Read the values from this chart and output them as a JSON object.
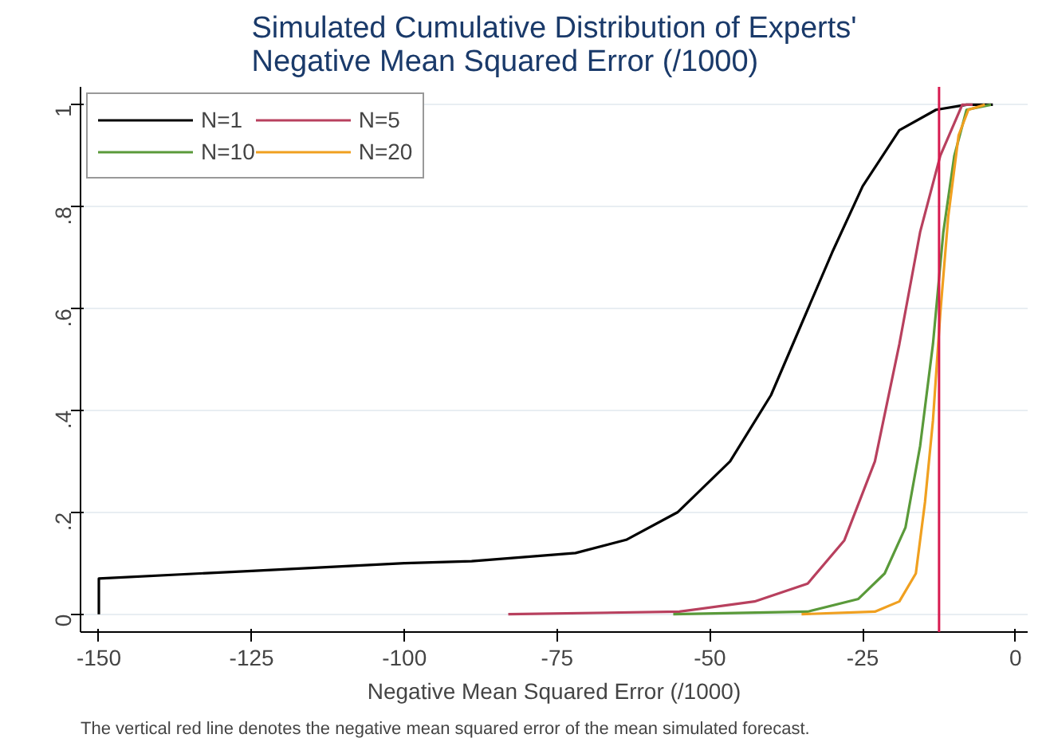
{
  "chart_data": {
    "type": "line",
    "title": "Simulated Cumulative Distribution of Experts'\nNegative Mean Squared Error (/1000)",
    "xlabel": "Negative Mean Squared Error (/1000)",
    "annotations": [
      "The vertical red line denotes the negative mean squared error of the mean simulated forecast."
    ],
    "xlim": [
      -153,
      2
    ],
    "ylim": [
      -0.035,
      1.035
    ],
    "xticks": [
      -150,
      -125,
      -100,
      -75,
      -50,
      -25,
      0
    ],
    "yticks": [
      0,
      {
        "value": 0.2,
        "label": ".2"
      },
      {
        "value": 0.4,
        "label": ".4"
      },
      {
        "value": 0.6,
        "label": ".6"
      },
      {
        "value": 0.8,
        "label": ".8"
      },
      1
    ],
    "grid": "y",
    "legend": "top left",
    "line_style": "solid",
    "ref_lines": [
      {
        "axis": "x",
        "value": -12.5,
        "color": "#d81b50"
      }
    ],
    "series": [
      {
        "name": "N=1",
        "color": "#000000",
        "x": [
          -150,
          -150,
          -125,
          -100,
          -89,
          -72,
          -63.7,
          -55.3,
          -46.7,
          -40,
          -35,
          -30,
          -25,
          -19,
          -13,
          -8,
          -3.7
        ],
        "values": [
          0,
          0.07,
          0.085,
          0.1,
          0.104,
          0.12,
          0.146,
          0.2,
          0.3,
          0.43,
          0.57,
          0.71,
          0.84,
          0.95,
          0.99,
          1,
          1
        ]
      },
      {
        "name": "N=5",
        "color": "#b8405e",
        "x": [
          -83,
          -55,
          -42.7,
          -34,
          -28,
          -23,
          -19,
          -15.6,
          -12.3,
          -8.7,
          -7
        ],
        "values": [
          0,
          0.005,
          0.025,
          0.06,
          0.145,
          0.3,
          0.53,
          0.75,
          0.9,
          1,
          1
        ]
      },
      {
        "name": "N=10",
        "color": "#5a9a3a",
        "x": [
          -56,
          -34,
          -25.7,
          -21.4,
          -18,
          -15.6,
          -13.5,
          -11.8,
          -10,
          -8,
          -4
        ],
        "values": [
          0,
          0.005,
          0.03,
          0.08,
          0.17,
          0.33,
          0.53,
          0.75,
          0.9,
          0.99,
          1
        ]
      },
      {
        "name": "N=20",
        "color": "#f0a020",
        "x": [
          -35,
          -23,
          -19,
          -16.3,
          -14.8,
          -13.5,
          -12.3,
          -11,
          -9.3,
          -7.7,
          -5
        ],
        "values": [
          0,
          0.005,
          0.025,
          0.08,
          0.22,
          0.38,
          0.59,
          0.78,
          0.94,
          0.99,
          1
        ]
      }
    ]
  }
}
